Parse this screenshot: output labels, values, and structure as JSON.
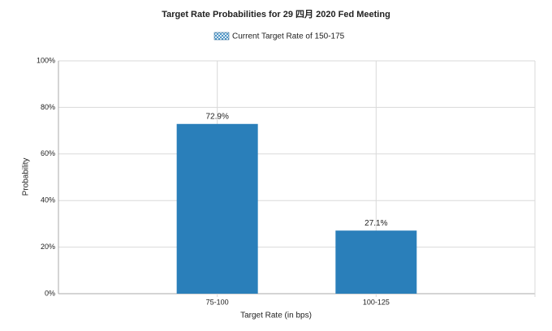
{
  "chart_data": {
    "type": "bar",
    "title": "Target Rate Probabilities for 29 四月 2020 Fed Meeting",
    "series": [
      {
        "name": "Current Target Rate of 150-175",
        "color": "#2a7fba",
        "values": [
          72.9,
          27.1
        ],
        "value_labels": [
          "72.9%",
          "27.1%"
        ]
      }
    ],
    "categories": [
      "75-100",
      "100-125"
    ],
    "x_label": "Target Rate (in bps)",
    "y_label": "Probability",
    "ylim": [
      0,
      100
    ],
    "yticks": [
      {
        "value": 0,
        "label": "0%"
      },
      {
        "value": 20,
        "label": "20%"
      },
      {
        "value": 40,
        "label": "40%"
      },
      {
        "value": 60,
        "label": "60%"
      },
      {
        "value": 80,
        "label": "80%"
      },
      {
        "value": 100,
        "label": "100%"
      }
    ],
    "grid": true
  }
}
